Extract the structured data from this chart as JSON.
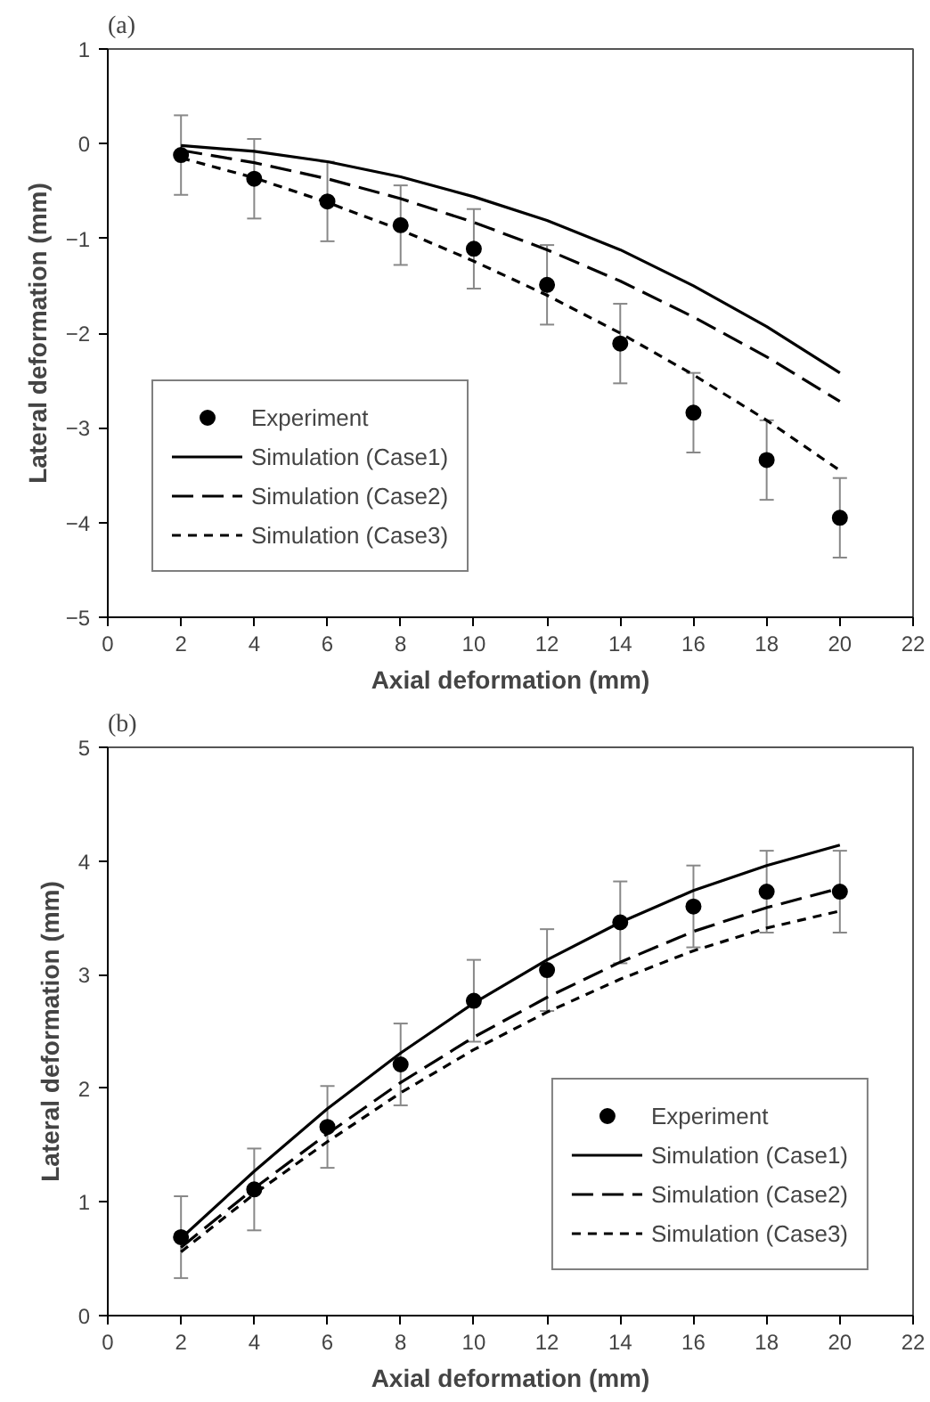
{
  "chart_data": [
    {
      "type": "line",
      "title": "(a)",
      "xlabel": "Axial deformation (mm)",
      "ylabel": "Lateral deformation (mm)",
      "x": [
        2,
        4,
        6,
        8,
        10,
        12,
        14,
        16,
        18,
        20
      ],
      "xlim": [
        0,
        22
      ],
      "xticks": [
        0,
        2,
        4,
        6,
        8,
        10,
        12,
        14,
        16,
        18,
        20,
        22
      ],
      "ylim": [
        -5,
        1
      ],
      "yticks": [
        -5,
        -4,
        -3,
        -2,
        -1,
        0,
        1
      ],
      "grid": false,
      "legend": "bottom left",
      "series": [
        {
          "name": "Experiment",
          "type": "scatter",
          "marker": "circle",
          "color": "#000000",
          "values": [
            -0.12,
            -0.37,
            -0.61,
            -0.86,
            -1.11,
            -1.49,
            -2.11,
            -2.84,
            -3.34,
            -3.95
          ],
          "errors": [
            0.42,
            0.42,
            0.42,
            0.42,
            0.42,
            0.42,
            0.42,
            0.42,
            0.42,
            0.42
          ]
        },
        {
          "name": "Simulation (Case1)",
          "line_style": "solid",
          "color": "#000000",
          "values": [
            -0.02,
            -0.08,
            -0.19,
            -0.35,
            -0.56,
            -0.81,
            -1.12,
            -1.5,
            -1.93,
            -2.42
          ]
        },
        {
          "name": "Simulation (Case2)",
          "line_style": "dashed",
          "color": "#000000",
          "values": [
            -0.07,
            -0.2,
            -0.37,
            -0.58,
            -0.83,
            -1.12,
            -1.45,
            -1.83,
            -2.25,
            -2.72
          ]
        },
        {
          "name": "Simulation (Case3)",
          "line_style": "dotted",
          "color": "#000000",
          "values": [
            -0.15,
            -0.36,
            -0.62,
            -0.91,
            -1.24,
            -1.6,
            -2.0,
            -2.44,
            -2.92,
            -3.45
          ]
        }
      ]
    },
    {
      "type": "line",
      "title": "(b)",
      "xlabel": "Axial deformation (mm)",
      "ylabel": "Lateral deformation (mm)",
      "x": [
        2,
        4,
        6,
        8,
        10,
        12,
        14,
        16,
        18,
        20
      ],
      "xlim": [
        0,
        22
      ],
      "xticks": [
        0,
        2,
        4,
        6,
        8,
        10,
        12,
        14,
        16,
        18,
        20,
        22
      ],
      "ylim": [
        0,
        5
      ],
      "yticks": [
        0,
        1,
        2,
        3,
        4,
        5
      ],
      "grid": false,
      "legend": "bottom right",
      "series": [
        {
          "name": "Experiment",
          "type": "scatter",
          "marker": "circle",
          "color": "#000000",
          "values": [
            0.69,
            1.11,
            1.66,
            2.21,
            2.77,
            3.04,
            3.46,
            3.6,
            3.73,
            3.73
          ],
          "errors": [
            0.36,
            0.36,
            0.36,
            0.36,
            0.36,
            0.36,
            0.36,
            0.36,
            0.36,
            0.36
          ]
        },
        {
          "name": "Simulation (Case1)",
          "line_style": "solid",
          "color": "#000000",
          "values": [
            0.68,
            1.27,
            1.82,
            2.31,
            2.75,
            3.13,
            3.46,
            3.74,
            3.96,
            4.14
          ]
        },
        {
          "name": "Simulation (Case2)",
          "line_style": "dashed",
          "color": "#000000",
          "values": [
            0.6,
            1.12,
            1.6,
            2.05,
            2.45,
            2.8,
            3.11,
            3.38,
            3.59,
            3.76
          ]
        },
        {
          "name": "Simulation (Case3)",
          "line_style": "dotted",
          "color": "#000000",
          "values": [
            0.56,
            1.07,
            1.53,
            1.96,
            2.34,
            2.67,
            2.96,
            3.21,
            3.41,
            3.56
          ]
        }
      ]
    }
  ]
}
